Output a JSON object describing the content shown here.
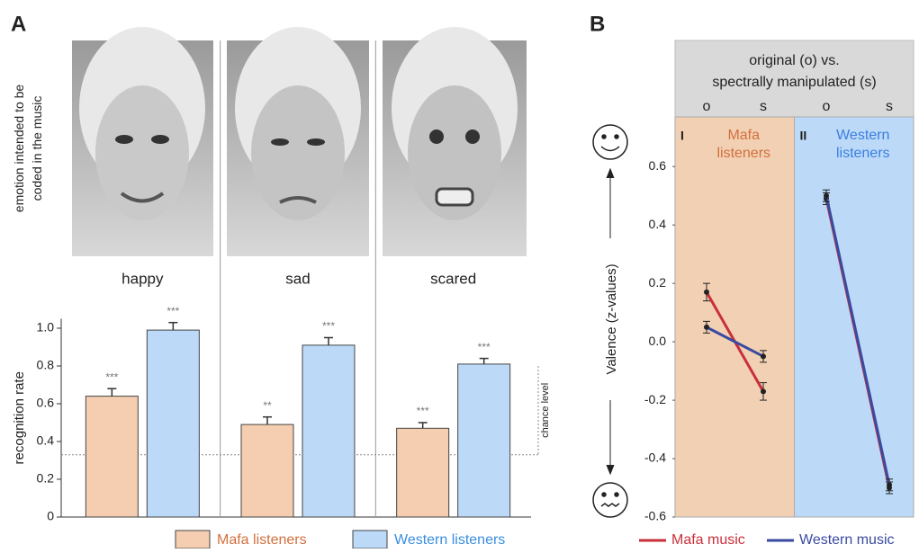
{
  "chart_data": [
    {
      "type": "bar",
      "label": "A",
      "ylabel": "recognition rate",
      "top_label": [
        "emotion intended to be",
        "coded in the music"
      ],
      "categories": [
        "happy",
        "sad",
        "scared"
      ],
      "series": [
        {
          "name": "Mafa listeners",
          "color": "#f5cdb0",
          "text_color": "#d2703c",
          "values": [
            0.64,
            0.49,
            0.47
          ],
          "errors": [
            0.04,
            0.04,
            0.03
          ],
          "significance": [
            "***",
            "**",
            "***"
          ]
        },
        {
          "name": "Western listeners",
          "color": "#bcdaf7",
          "text_color": "#3a8ee0",
          "values": [
            0.99,
            0.91,
            0.81
          ],
          "errors": [
            0.04,
            0.04,
            0.03
          ],
          "significance": [
            "***",
            "***",
            "***"
          ]
        }
      ],
      "ylim": [
        0,
        1.05
      ],
      "yticks": [
        0,
        0.2,
        0.4,
        0.6,
        0.8,
        {
          "value": 1,
          "label": "1.0"
        }
      ],
      "chance_level": 0.33,
      "chance_label": "chance level"
    },
    {
      "type": "line",
      "label": "B",
      "ylabel": "Valence (z-values)",
      "header": [
        "original (o) vs.",
        "spectrally manipulated (s)"
      ],
      "categories": [
        "o",
        "s",
        "o",
        "s"
      ],
      "panels": [
        {
          "numeral": "I",
          "title": [
            "Mafa",
            "listeners"
          ],
          "color": "#f2d0b4",
          "text_color": "#d2703c"
        },
        {
          "numeral": "II",
          "title": [
            "Western",
            "listeners"
          ],
          "color": "#bcdaf7",
          "text_color": "#3a7ee0"
        }
      ],
      "series": [
        {
          "name": "Mafa music",
          "color": "#c8303a",
          "values": [
            0.17,
            -0.17,
            0.49,
            -0.5
          ],
          "errors": [
            0.03,
            0.03,
            0.02,
            0.02
          ]
        },
        {
          "name": "Western music",
          "color": "#3a4aa0",
          "values": [
            0.05,
            -0.05,
            0.5,
            -0.49
          ],
          "errors": [
            0.02,
            0.02,
            0.02,
            0.02
          ]
        }
      ],
      "ylim": [
        -0.6,
        0.77
      ],
      "yticks": [
        -0.6,
        -0.4,
        -0.2,
        {
          "value": 0,
          "label": "0.0"
        },
        0.2,
        0.4,
        0.6
      ]
    }
  ]
}
